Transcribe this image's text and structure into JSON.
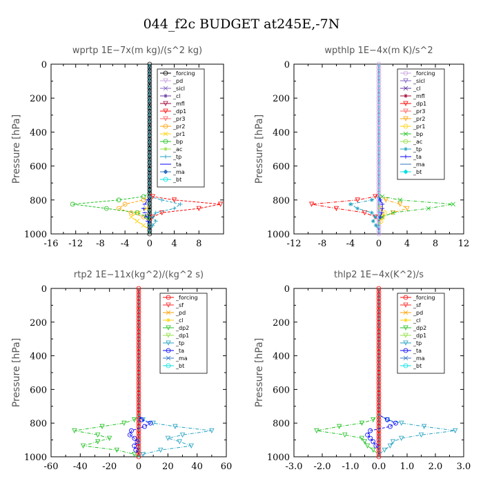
{
  "figure": {
    "title": "044_f2c  BUDGET at245E,-7N"
  },
  "chart_data": [
    {
      "type": "line",
      "title": "wprtp  1E−7x(m kg)/(s^2 kg)",
      "ylabel": "Pressure [hPa]",
      "xlim": [
        -16,
        12
      ],
      "xticks": [
        -16,
        -12,
        -8,
        -4,
        0,
        4,
        8
      ],
      "xtick_labels": [
        "-16",
        "-12",
        "-8",
        "-4",
        "0",
        "4",
        "8"
      ],
      "ylim": [
        1000,
        0
      ],
      "yticks": [
        0,
        200,
        400,
        600,
        800,
        1000
      ],
      "ytick_labels": [
        "0",
        "200",
        "400",
        "600",
        "800",
        "1000"
      ],
      "legend_position": "top-right",
      "y": [
        740,
        760,
        780,
        800,
        825,
        850,
        875,
        900,
        925,
        950,
        975,
        1000
      ],
      "series": [
        {
          "name": "_forcing",
          "color": "#000000",
          "values": [
            0,
            0,
            0,
            0,
            0,
            0,
            0,
            0,
            0,
            0,
            0,
            0
          ]
        },
        {
          "name": "_pd",
          "color": "#c8a0dc",
          "values": [
            0,
            0,
            0,
            0,
            0,
            0,
            0,
            0,
            0,
            0,
            0,
            0
          ]
        },
        {
          "name": "_sicl",
          "color": "#8060c0",
          "values": [
            0,
            0,
            0,
            0,
            0,
            0,
            0,
            0,
            0,
            0,
            0,
            0
          ]
        },
        {
          "name": "_cl",
          "color": "#6030a0",
          "values": [
            0,
            0,
            0,
            0,
            0,
            0,
            0,
            0,
            0,
            0,
            0,
            0
          ]
        },
        {
          "name": "_mfl",
          "color": "#a00030",
          "values": [
            0,
            0,
            0,
            0,
            0,
            0,
            0,
            0,
            0,
            0,
            0,
            0
          ]
        },
        {
          "name": "_dp1",
          "color": "#ff0000",
          "values": [
            0,
            0,
            0.5,
            4,
            11.5,
            8,
            2,
            0.5,
            0,
            0,
            0,
            0
          ]
        },
        {
          "name": "_pr3",
          "color": "#ff6060",
          "values": [
            0,
            0,
            0,
            0,
            0,
            0,
            0,
            0,
            0,
            0,
            0,
            0
          ]
        },
        {
          "name": "_pr2",
          "color": "#ffa000",
          "values": [
            0,
            0,
            0,
            -1,
            -4,
            -5,
            -3,
            -1,
            0,
            0,
            0,
            0
          ]
        },
        {
          "name": "_pr1",
          "color": "#ffd000",
          "values": [
            0,
            0,
            0,
            0,
            0,
            -0.5,
            -2,
            -3,
            -2,
            -1,
            0,
            0
          ]
        },
        {
          "name": "_bp",
          "color": "#20c020",
          "values": [
            0,
            0,
            -1,
            -5,
            -12.5,
            -7,
            -2,
            -0.5,
            0,
            0,
            0,
            0
          ]
        },
        {
          "name": "_ac",
          "color": "#90e040",
          "values": [
            0,
            0,
            0,
            0,
            0,
            0,
            0,
            0,
            0,
            0,
            0,
            0
          ]
        },
        {
          "name": "_tp",
          "color": "#20a0c0",
          "values": [
            0,
            0,
            0,
            2,
            5,
            4,
            1,
            0.5,
            1,
            0.5,
            0,
            0
          ]
        },
        {
          "name": "_ta",
          "color": "#0000ff",
          "values": [
            0,
            0,
            0,
            -0.3,
            -0.8,
            -1,
            -0.8,
            -0.5,
            -0.3,
            0,
            0,
            0
          ]
        },
        {
          "name": "_ma",
          "color": "#3070c0",
          "values": [
            0,
            0,
            0,
            0,
            0,
            0,
            0,
            0,
            0,
            0,
            0,
            0
          ]
        },
        {
          "name": "_bt",
          "color": "#00e0e0",
          "values": [
            0,
            0,
            0,
            0,
            0,
            0,
            0,
            0,
            0,
            0,
            0,
            0
          ]
        }
      ]
    },
    {
      "type": "line",
      "title": "wpthlp  1E−4x(m K)/s^2",
      "ylabel": "Pressure [hPa]",
      "xlim": [
        -12,
        12
      ],
      "xticks": [
        -12,
        -8,
        -4,
        0,
        4,
        8,
        12
      ],
      "xtick_labels": [
        "-12",
        "-8",
        "-4",
        "0",
        "4",
        "8",
        "12"
      ],
      "ylim": [
        1000,
        0
      ],
      "yticks": [
        0,
        200,
        400,
        600,
        800,
        1000
      ],
      "ytick_labels": [
        "0",
        "200",
        "400",
        "600",
        "800",
        "1000"
      ],
      "legend_position": "top-right",
      "y": [
        740,
        760,
        780,
        800,
        825,
        850,
        875,
        900,
        925,
        950,
        975,
        1000
      ],
      "series": [
        {
          "name": "_forcing",
          "color": "#c8a0dc",
          "values": [
            0,
            0,
            0,
            0,
            0,
            0,
            0,
            0,
            0,
            0,
            0,
            0
          ]
        },
        {
          "name": "_sicl",
          "color": "#8060c0",
          "values": [
            0,
            0,
            0,
            0,
            0,
            0,
            0,
            0,
            0,
            0,
            0,
            0
          ]
        },
        {
          "name": "_cl",
          "color": "#6030a0",
          "values": [
            0,
            0,
            0,
            0,
            0,
            0,
            0,
            0,
            0,
            0,
            0,
            0
          ]
        },
        {
          "name": "_mfl",
          "color": "#a00030",
          "values": [
            0,
            0,
            0,
            0,
            0,
            0,
            0,
            0,
            0,
            0,
            0,
            0
          ]
        },
        {
          "name": "_dp1",
          "color": "#ff0000",
          "values": [
            0,
            0,
            -0.5,
            -3,
            -9.5,
            -6,
            -2,
            -0.5,
            0,
            0,
            0,
            0
          ]
        },
        {
          "name": "_pr3",
          "color": "#ff6060",
          "values": [
            0,
            0,
            0,
            0,
            0,
            0,
            0,
            0,
            0,
            0,
            0,
            0
          ]
        },
        {
          "name": "_pr2",
          "color": "#ffa000",
          "values": [
            0,
            0,
            0,
            1,
            3,
            4,
            2,
            0.5,
            0,
            0,
            0,
            0
          ]
        },
        {
          "name": "_pr1",
          "color": "#ffd000",
          "values": [
            0,
            0,
            0,
            0,
            0,
            0.3,
            0.8,
            0.5,
            0.3,
            0,
            0,
            0
          ]
        },
        {
          "name": "_bp",
          "color": "#20c020",
          "values": [
            0,
            0,
            0.5,
            3,
            10.5,
            7,
            2,
            0.5,
            0,
            0,
            0,
            0
          ]
        },
        {
          "name": "_ac",
          "color": "#90e040",
          "values": [
            0,
            0,
            0,
            0,
            0,
            0,
            0,
            0,
            0,
            0,
            0,
            0
          ]
        },
        {
          "name": "_tp",
          "color": "#20a0c0",
          "values": [
            0,
            0,
            0,
            -1,
            -4,
            -3,
            -1,
            -0.5,
            -0.8,
            -0.4,
            0,
            0
          ]
        },
        {
          "name": "_ta",
          "color": "#0000ff",
          "values": [
            0,
            0,
            0,
            0.2,
            0.5,
            0.5,
            0.4,
            0.2,
            0,
            0,
            0,
            0
          ]
        },
        {
          "name": "_ma",
          "color": "#3070c0",
          "values": [
            0,
            0,
            0,
            0,
            0,
            0,
            0,
            0,
            0,
            0,
            0,
            0
          ]
        },
        {
          "name": "_bt",
          "color": "#00e0e0",
          "values": [
            0,
            0,
            0,
            0,
            0,
            0,
            0,
            0,
            0,
            0,
            0,
            0
          ]
        }
      ]
    },
    {
      "type": "line",
      "title": "rtp2  1E−11x(kg^2)/(kg^2 s)",
      "ylabel": "Pressure [hPa]",
      "xlim": [
        -60,
        60
      ],
      "xticks": [
        -60,
        -40,
        -20,
        0,
        20,
        40,
        60
      ],
      "xtick_labels": [
        "-60",
        "-40",
        "-20",
        "0",
        "20",
        "40",
        "60"
      ],
      "ylim": [
        1000,
        0
      ],
      "yticks": [
        0,
        200,
        400,
        600,
        800,
        1000
      ],
      "ytick_labels": [
        "0",
        "200",
        "400",
        "600",
        "800",
        "1000"
      ],
      "legend_position": "top-right",
      "y": [
        750,
        780,
        800,
        820,
        845,
        870,
        890,
        910,
        935,
        960,
        985,
        1000
      ],
      "series": [
        {
          "name": "_forcing",
          "color": "#ff0000",
          "values": [
            0,
            0,
            0,
            0,
            0,
            0,
            0,
            0,
            0,
            0,
            0,
            0
          ]
        },
        {
          "name": "_sf",
          "color": "#ff2020",
          "values": [
            0,
            0,
            0,
            0,
            0,
            0,
            0,
            0,
            0,
            0,
            0,
            0
          ]
        },
        {
          "name": "_pd",
          "color": "#ffa000",
          "values": [
            0,
            0,
            0,
            0,
            0,
            0,
            0,
            0,
            0,
            0,
            0,
            0
          ]
        },
        {
          "name": "_cl",
          "color": "#ffd000",
          "values": [
            0,
            0,
            0,
            0,
            0,
            0,
            0,
            0,
            0,
            0,
            0,
            0
          ]
        },
        {
          "name": "_dp2",
          "color": "#20c020",
          "values": [
            0,
            -3,
            -10,
            -25,
            -44,
            -28,
            -20,
            -28,
            -38,
            -15,
            -3,
            0
          ]
        },
        {
          "name": "_dp1",
          "color": "#90e040",
          "values": [
            0,
            0,
            0,
            0,
            0,
            0,
            0,
            0,
            0,
            0,
            0,
            0
          ]
        },
        {
          "name": "_tp",
          "color": "#20a0c0",
          "values": [
            0,
            3,
            10,
            25,
            50,
            30,
            20,
            28,
            36,
            15,
            3,
            0
          ]
        },
        {
          "name": "_ta",
          "color": "#0000ff",
          "values": [
            0,
            2,
            8,
            4,
            -5,
            -6,
            -3,
            -1,
            -3,
            -2,
            0,
            0
          ]
        },
        {
          "name": "_ma",
          "color": "#3070c0",
          "values": [
            0,
            0,
            0,
            0,
            0,
            0,
            0,
            0,
            0,
            0,
            0,
            0
          ]
        },
        {
          "name": "_bt",
          "color": "#00e0e0",
          "values": [
            0,
            0,
            0,
            0,
            0,
            0,
            0,
            0,
            0,
            0,
            0,
            0
          ]
        }
      ]
    },
    {
      "type": "line",
      "title": "thlp2  1E−4x(K^2)/s",
      "ylabel": "Pressure [hPa]",
      "xlim": [
        -3.0,
        3.0
      ],
      "xticks": [
        -3.0,
        -2.0,
        -1.0,
        0.0,
        1.0,
        2.0,
        3.0
      ],
      "xtick_labels": [
        "-3.0",
        "-2.0",
        "-1.0",
        "0.0",
        "1.0",
        "2.0",
        "3.0"
      ],
      "ylim": [
        1000,
        0
      ],
      "yticks": [
        0,
        200,
        400,
        600,
        800,
        1000
      ],
      "ytick_labels": [
        "0",
        "200",
        "400",
        "600",
        "800",
        "1000"
      ],
      "legend_position": "top-right",
      "y": [
        750,
        780,
        800,
        820,
        845,
        870,
        890,
        910,
        935,
        960,
        985,
        1000
      ],
      "series": [
        {
          "name": "_forcing",
          "color": "#ff0000",
          "values": [
            0,
            0,
            0,
            0,
            0,
            0,
            0,
            0,
            0,
            0,
            0,
            0
          ]
        },
        {
          "name": "_sf",
          "color": "#ff2020",
          "values": [
            0,
            0,
            0,
            0,
            0,
            0,
            0,
            0,
            0,
            0,
            0,
            0
          ]
        },
        {
          "name": "_pd",
          "color": "#ffa000",
          "values": [
            0,
            0,
            0,
            0,
            0,
            0,
            0,
            0,
            0,
            0,
            0,
            0
          ]
        },
        {
          "name": "_cl",
          "color": "#ffd000",
          "values": [
            0,
            0,
            0,
            0,
            0,
            0,
            0,
            0,
            0,
            0,
            0,
            0
          ]
        },
        {
          "name": "_dp2",
          "color": "#20c020",
          "values": [
            0,
            -0.2,
            -0.6,
            -1.4,
            -2.2,
            -1.2,
            -0.6,
            -0.5,
            -0.4,
            -0.2,
            0,
            0
          ]
        },
        {
          "name": "_dp1",
          "color": "#90e040",
          "values": [
            0,
            0,
            0,
            0,
            0,
            0,
            0,
            0,
            0,
            0,
            0,
            0
          ]
        },
        {
          "name": "_tp",
          "color": "#20a0c0",
          "values": [
            0,
            0.3,
            0.8,
            1.6,
            2.7,
            1.5,
            0.8,
            0.5,
            0.4,
            0.2,
            0,
            0
          ]
        },
        {
          "name": "_ta",
          "color": "#0000ff",
          "values": [
            0,
            0.3,
            0.6,
            0.4,
            -0.3,
            -0.4,
            -0.3,
            -0.2,
            -0.1,
            0,
            0,
            0
          ]
        },
        {
          "name": "_ma",
          "color": "#3070c0",
          "values": [
            0,
            0,
            0,
            0,
            0,
            0,
            0,
            0,
            0,
            0,
            0,
            0
          ]
        },
        {
          "name": "_bt",
          "color": "#00e0e0",
          "values": [
            0,
            0,
            0,
            0,
            0,
            0,
            0,
            0,
            0,
            0,
            0,
            0
          ]
        }
      ]
    }
  ]
}
